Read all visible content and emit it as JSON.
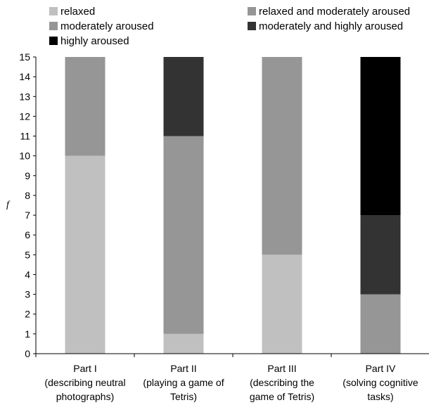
{
  "chart_data": {
    "type": "bar",
    "stacked": true,
    "title": "",
    "xlabel": "",
    "ylabel": "f",
    "ylim": [
      0,
      15
    ],
    "yticks": [
      0,
      1,
      2,
      3,
      4,
      5,
      6,
      7,
      8,
      9,
      10,
      11,
      12,
      13,
      14,
      15
    ],
    "grid": false,
    "legend_position": "top",
    "categories": [
      [
        "Part I",
        "(describing neutral",
        "photographs)"
      ],
      [
        "Part II",
        "(playing a game of",
        "Tetris)"
      ],
      [
        "Part III",
        "(describing the",
        "game of Tetris)"
      ],
      [
        "Part IV",
        "(solving cognitive",
        "tasks)"
      ]
    ],
    "series": [
      {
        "name": "relaxed",
        "color": "#c0c0c0",
        "values": [
          10,
          1,
          5,
          0
        ]
      },
      {
        "name": "relaxed and moderately aroused",
        "color": "#969696",
        "values": [
          0,
          0,
          0,
          0
        ]
      },
      {
        "name": "moderately aroused",
        "color": "#969696",
        "values": [
          5,
          10,
          10,
          3
        ]
      },
      {
        "name": "moderately and highly aroused",
        "color": "#333333",
        "values": [
          0,
          4,
          0,
          4
        ]
      },
      {
        "name": "highly aroused",
        "color": "#000000",
        "values": [
          0,
          0,
          0,
          8
        ]
      }
    ]
  }
}
